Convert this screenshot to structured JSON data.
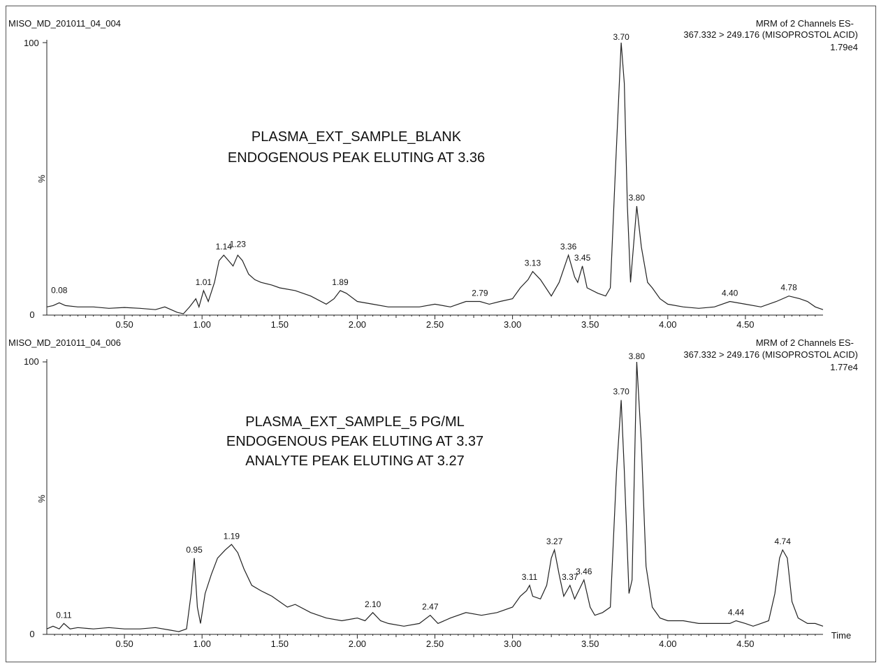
{
  "chart_data": [
    {
      "type": "line",
      "sample_id": "MISO_MD_201011_04_004",
      "channel_line1": "MRM of 2 Channels ES-",
      "transition": "367.332 > 249.176 (MISOPROSTOL ACID)",
      "intensity": "1.79e4",
      "ylabel": "%",
      "xlabel": "",
      "xlim": [
        0,
        5.0
      ],
      "ylim": [
        0,
        100
      ],
      "xticks": [
        "0.50",
        "1.00",
        "1.50",
        "2.00",
        "2.50",
        "3.00",
        "3.50",
        "4.00",
        "4.50"
      ],
      "yticks": [
        "0",
        "100"
      ],
      "annotation": [
        "PLASMA_EXT_SAMPLE_BLANK",
        "ENDOGENOUS PEAK ELUTING AT 3.36"
      ],
      "peaks": [
        {
          "label": "0.08",
          "x": 0.08,
          "y": 6
        },
        {
          "label": "1.01",
          "x": 1.01,
          "y": 9
        },
        {
          "label": "1.14",
          "x": 1.14,
          "y": 22
        },
        {
          "label": "1.23",
          "x": 1.23,
          "y": 23
        },
        {
          "label": "1.89",
          "x": 1.89,
          "y": 9
        },
        {
          "label": "2.79",
          "x": 2.79,
          "y": 5
        },
        {
          "label": "3.13",
          "x": 3.13,
          "y": 16
        },
        {
          "label": "3.36",
          "x": 3.36,
          "y": 22
        },
        {
          "label": "3.45",
          "x": 3.45,
          "y": 18
        },
        {
          "label": "3.70",
          "x": 3.7,
          "y": 100
        },
        {
          "label": "3.80",
          "x": 3.8,
          "y": 40
        },
        {
          "label": "4.40",
          "x": 4.4,
          "y": 5
        },
        {
          "label": "4.78",
          "x": 4.78,
          "y": 7
        }
      ],
      "trace": [
        [
          0.0,
          3
        ],
        [
          0.04,
          3.5
        ],
        [
          0.08,
          4.5
        ],
        [
          0.12,
          3.5
        ],
        [
          0.2,
          3
        ],
        [
          0.3,
          3
        ],
        [
          0.4,
          2.5
        ],
        [
          0.5,
          2.8
        ],
        [
          0.6,
          2.5
        ],
        [
          0.7,
          2
        ],
        [
          0.76,
          3
        ],
        [
          0.8,
          2
        ],
        [
          0.84,
          1
        ],
        [
          0.88,
          0.5
        ],
        [
          0.92,
          3
        ],
        [
          0.96,
          6
        ],
        [
          0.98,
          3
        ],
        [
          1.01,
          9
        ],
        [
          1.04,
          5
        ],
        [
          1.08,
          12
        ],
        [
          1.11,
          20
        ],
        [
          1.14,
          22
        ],
        [
          1.17,
          20
        ],
        [
          1.2,
          18
        ],
        [
          1.23,
          22
        ],
        [
          1.26,
          20
        ],
        [
          1.3,
          15
        ],
        [
          1.34,
          13
        ],
        [
          1.38,
          12
        ],
        [
          1.45,
          11
        ],
        [
          1.5,
          10
        ],
        [
          1.6,
          9
        ],
        [
          1.7,
          7
        ],
        [
          1.8,
          4
        ],
        [
          1.85,
          6
        ],
        [
          1.89,
          9
        ],
        [
          1.93,
          8
        ],
        [
          2.0,
          5
        ],
        [
          2.1,
          4
        ],
        [
          2.2,
          3
        ],
        [
          2.3,
          3
        ],
        [
          2.4,
          3
        ],
        [
          2.5,
          4
        ],
        [
          2.6,
          3
        ],
        [
          2.7,
          5
        ],
        [
          2.79,
          5
        ],
        [
          2.85,
          4
        ],
        [
          2.92,
          5
        ],
        [
          3.0,
          6
        ],
        [
          3.05,
          10
        ],
        [
          3.1,
          13
        ],
        [
          3.13,
          16
        ],
        [
          3.18,
          13
        ],
        [
          3.25,
          7
        ],
        [
          3.3,
          12
        ],
        [
          3.36,
          22
        ],
        [
          3.4,
          14
        ],
        [
          3.42,
          12
        ],
        [
          3.45,
          18
        ],
        [
          3.48,
          10
        ],
        [
          3.55,
          8
        ],
        [
          3.6,
          7
        ],
        [
          3.63,
          10
        ],
        [
          3.66,
          50
        ],
        [
          3.7,
          100
        ],
        [
          3.72,
          85
        ],
        [
          3.74,
          40
        ],
        [
          3.76,
          12
        ],
        [
          3.8,
          40
        ],
        [
          3.83,
          25
        ],
        [
          3.87,
          12
        ],
        [
          3.9,
          10
        ],
        [
          3.95,
          6
        ],
        [
          4.0,
          4
        ],
        [
          4.1,
          3
        ],
        [
          4.2,
          2.5
        ],
        [
          4.3,
          3
        ],
        [
          4.4,
          5
        ],
        [
          4.5,
          4
        ],
        [
          4.6,
          3
        ],
        [
          4.7,
          5
        ],
        [
          4.78,
          7
        ],
        [
          4.85,
          6
        ],
        [
          4.9,
          5
        ],
        [
          4.95,
          3
        ],
        [
          5.0,
          2
        ]
      ]
    },
    {
      "type": "line",
      "sample_id": "MISO_MD_201011_04_006",
      "channel_line1": "MRM of 2 Channels ES-",
      "transition": "367.332 > 249.176 (MISOPROSTOL ACID)",
      "intensity": "1.77e4",
      "ylabel": "%",
      "xlabel": "Time",
      "xlim": [
        0,
        5.0
      ],
      "ylim": [
        0,
        100
      ],
      "xticks": [
        "0.50",
        "1.00",
        "1.50",
        "2.00",
        "2.50",
        "3.00",
        "3.50",
        "4.00",
        "4.50"
      ],
      "yticks": [
        "0",
        "100"
      ],
      "annotation": [
        "PLASMA_EXT_SAMPLE_5 PG/ML",
        "ENDOGENOUS PEAK ELUTING AT 3.37",
        "ANALYTE PEAK ELUTING AT 3.27"
      ],
      "peaks": [
        {
          "label": "0.11",
          "x": 0.11,
          "y": 4
        },
        {
          "label": "0.95",
          "x": 0.95,
          "y": 28
        },
        {
          "label": "1.19",
          "x": 1.19,
          "y": 33
        },
        {
          "label": "2.10",
          "x": 2.1,
          "y": 8
        },
        {
          "label": "2.47",
          "x": 2.47,
          "y": 7
        },
        {
          "label": "3.11",
          "x": 3.11,
          "y": 18
        },
        {
          "label": "3.27",
          "x": 3.27,
          "y": 31
        },
        {
          "label": "3.37",
          "x": 3.37,
          "y": 18
        },
        {
          "label": "3.46",
          "x": 3.46,
          "y": 20
        },
        {
          "label": "3.70",
          "x": 3.7,
          "y": 86
        },
        {
          "label": "3.80",
          "x": 3.8,
          "y": 100
        },
        {
          "label": "4.44",
          "x": 4.44,
          "y": 5
        },
        {
          "label": "4.74",
          "x": 4.74,
          "y": 31
        }
      ],
      "trace": [
        [
          0.0,
          2
        ],
        [
          0.04,
          3
        ],
        [
          0.08,
          2
        ],
        [
          0.11,
          4
        ],
        [
          0.15,
          2
        ],
        [
          0.2,
          2.5
        ],
        [
          0.3,
          2
        ],
        [
          0.4,
          2.5
        ],
        [
          0.5,
          2
        ],
        [
          0.6,
          2
        ],
        [
          0.7,
          2.5
        ],
        [
          0.8,
          1.5
        ],
        [
          0.85,
          1
        ],
        [
          0.9,
          2
        ],
        [
          0.93,
          15
        ],
        [
          0.95,
          28
        ],
        [
          0.97,
          10
        ],
        [
          0.99,
          4
        ],
        [
          1.02,
          15
        ],
        [
          1.06,
          22
        ],
        [
          1.1,
          28
        ],
        [
          1.15,
          31
        ],
        [
          1.19,
          33
        ],
        [
          1.23,
          30
        ],
        [
          1.27,
          24
        ],
        [
          1.32,
          18
        ],
        [
          1.38,
          16
        ],
        [
          1.45,
          14
        ],
        [
          1.5,
          12
        ],
        [
          1.55,
          10
        ],
        [
          1.6,
          11
        ],
        [
          1.7,
          8
        ],
        [
          1.8,
          6
        ],
        [
          1.9,
          5
        ],
        [
          2.0,
          6
        ],
        [
          2.05,
          5
        ],
        [
          2.1,
          8
        ],
        [
          2.15,
          5
        ],
        [
          2.2,
          4
        ],
        [
          2.3,
          3
        ],
        [
          2.4,
          4
        ],
        [
          2.47,
          7
        ],
        [
          2.52,
          4
        ],
        [
          2.6,
          6
        ],
        [
          2.7,
          8
        ],
        [
          2.8,
          7
        ],
        [
          2.9,
          8
        ],
        [
          3.0,
          10
        ],
        [
          3.05,
          14
        ],
        [
          3.09,
          16
        ],
        [
          3.11,
          18
        ],
        [
          3.13,
          14
        ],
        [
          3.18,
          13
        ],
        [
          3.22,
          18
        ],
        [
          3.25,
          28
        ],
        [
          3.27,
          31
        ],
        [
          3.3,
          22
        ],
        [
          3.33,
          14
        ],
        [
          3.37,
          18
        ],
        [
          3.4,
          13
        ],
        [
          3.46,
          20
        ],
        [
          3.5,
          10
        ],
        [
          3.53,
          7
        ],
        [
          3.58,
          8
        ],
        [
          3.63,
          10
        ],
        [
          3.67,
          60
        ],
        [
          3.7,
          86
        ],
        [
          3.72,
          60
        ],
        [
          3.75,
          15
        ],
        [
          3.77,
          20
        ],
        [
          3.8,
          100
        ],
        [
          3.83,
          70
        ],
        [
          3.86,
          25
        ],
        [
          3.9,
          10
        ],
        [
          3.95,
          6
        ],
        [
          4.0,
          5
        ],
        [
          4.1,
          5
        ],
        [
          4.2,
          4
        ],
        [
          4.3,
          4
        ],
        [
          4.4,
          4
        ],
        [
          4.44,
          5
        ],
        [
          4.5,
          4
        ],
        [
          4.55,
          3
        ],
        [
          4.6,
          4
        ],
        [
          4.65,
          5
        ],
        [
          4.69,
          15
        ],
        [
          4.72,
          28
        ],
        [
          4.74,
          31
        ],
        [
          4.77,
          28
        ],
        [
          4.8,
          12
        ],
        [
          4.84,
          6
        ],
        [
          4.9,
          4
        ],
        [
          4.95,
          4
        ],
        [
          5.0,
          3
        ]
      ]
    }
  ]
}
